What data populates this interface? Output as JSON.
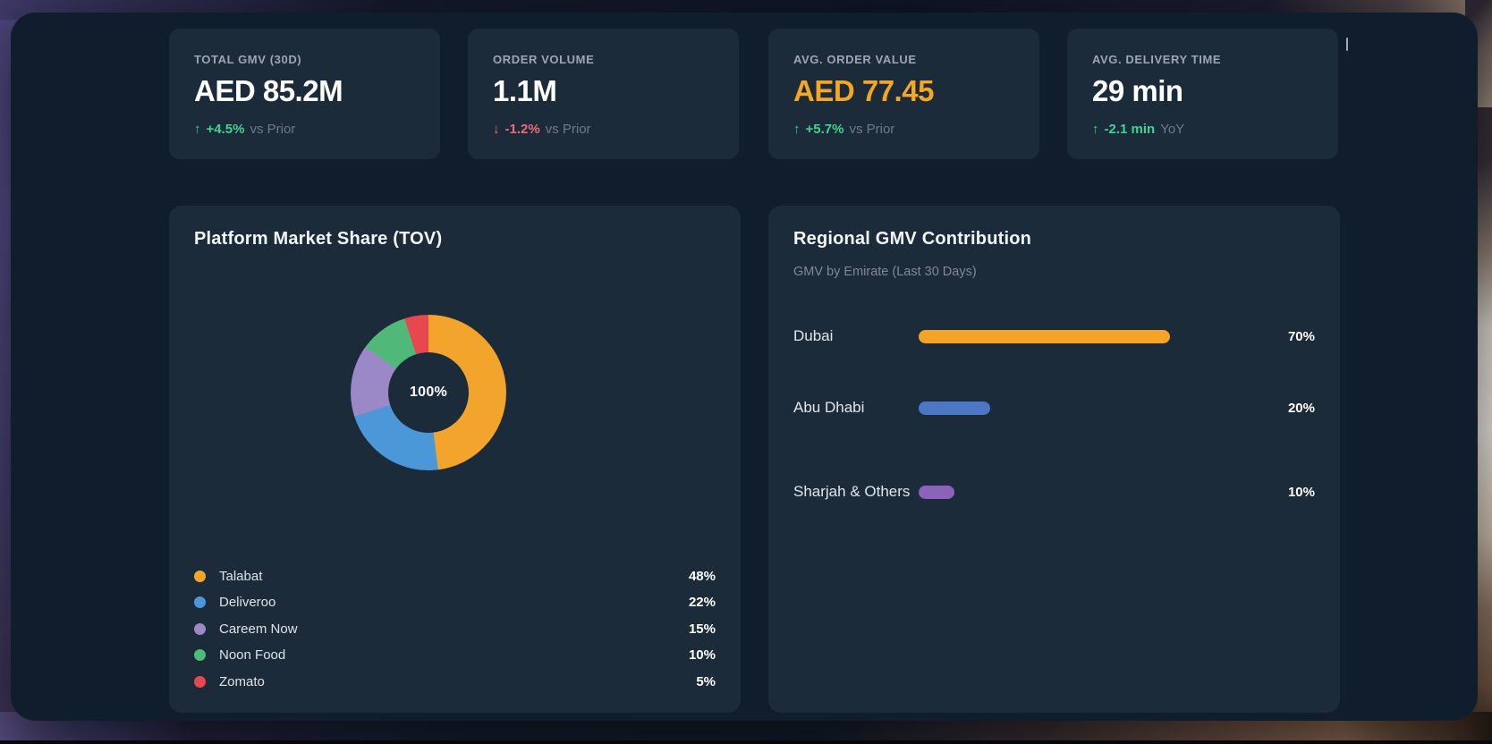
{
  "kpis": [
    {
      "label": "TOTAL GMV (30D)",
      "value": "AED 85.2M",
      "value_color": "",
      "arrow": "↑",
      "delta": "+4.5%",
      "delta_color": "#41D392",
      "suffix": "vs Prior"
    },
    {
      "label": "ORDER VOLUME",
      "value": "1.1M",
      "value_color": "",
      "arrow": "↓",
      "delta": "-1.2%",
      "delta_color": "#EE6B7C",
      "suffix": "vs Prior"
    },
    {
      "label": "AVG. ORDER VALUE",
      "value": "AED 77.45",
      "value_color": "#F5A623",
      "arrow": "↑",
      "delta": "+5.7%",
      "delta_color": "#41D392",
      "suffix": "vs Prior"
    },
    {
      "label": "AVG. DELIVERY TIME",
      "value": "29 min",
      "value_color": "",
      "arrow": "↑",
      "delta": "-2.1 min",
      "delta_color": "#41D392",
      "suffix": "YoY"
    }
  ],
  "market_share": {
    "title": "Platform Market Share (TOV)",
    "center_label": "100%",
    "items": [
      {
        "name": "Talabat",
        "pct": "48%",
        "value": 48,
        "color": "#F2A42C"
      },
      {
        "name": "Deliveroo",
        "pct": "22%",
        "value": 22,
        "color": "#4B97D7"
      },
      {
        "name": "Careem Now",
        "pct": "15%",
        "value": 15,
        "color": "#9A89C6"
      },
      {
        "name": "Noon Food",
        "pct": "10%",
        "value": 10,
        "color": "#50B878"
      },
      {
        "name": "Zomato",
        "pct": "5%",
        "value": 5,
        "color": "#E7484F"
      }
    ]
  },
  "regional": {
    "title": "Regional GMV Contribution",
    "subtitle": "GMV by Emirate (Last 30 Days)",
    "bars": [
      {
        "label": "Dubai",
        "pct": "70%",
        "value": 70,
        "color": "#F5A427"
      },
      {
        "label": "Abu Dhabi",
        "pct": "20%",
        "value": 20,
        "color": "#4C77C5"
      },
      {
        "label": "Sharjah & Others",
        "pct": "10%",
        "value": 10,
        "color": "#8C62BA"
      }
    ]
  },
  "chart_data": [
    {
      "type": "pie",
      "title": "Platform Market Share (TOV)",
      "labels": [
        "Talabat",
        "Deliveroo",
        "Careem Now",
        "Noon Food",
        "Zomato"
      ],
      "values": [
        48,
        22,
        15,
        10,
        5
      ],
      "unit": "%",
      "center_label": "100%",
      "colors": [
        "#F2A42C",
        "#4B97D7",
        "#9A89C6",
        "#50B878",
        "#E7484F"
      ],
      "legend_position": "bottom",
      "donut": true
    },
    {
      "type": "bar",
      "title": "Regional GMV Contribution",
      "subtitle": "GMV by Emirate (Last 30 Days)",
      "orientation": "horizontal",
      "categories": [
        "Dubai",
        "Abu Dhabi",
        "Sharjah & Others"
      ],
      "values": [
        70,
        20,
        10
      ],
      "unit": "%",
      "xlim": [
        0,
        100
      ],
      "colors": [
        "#F5A427",
        "#4C77C5",
        "#8C62BA"
      ],
      "grid": false
    }
  ]
}
